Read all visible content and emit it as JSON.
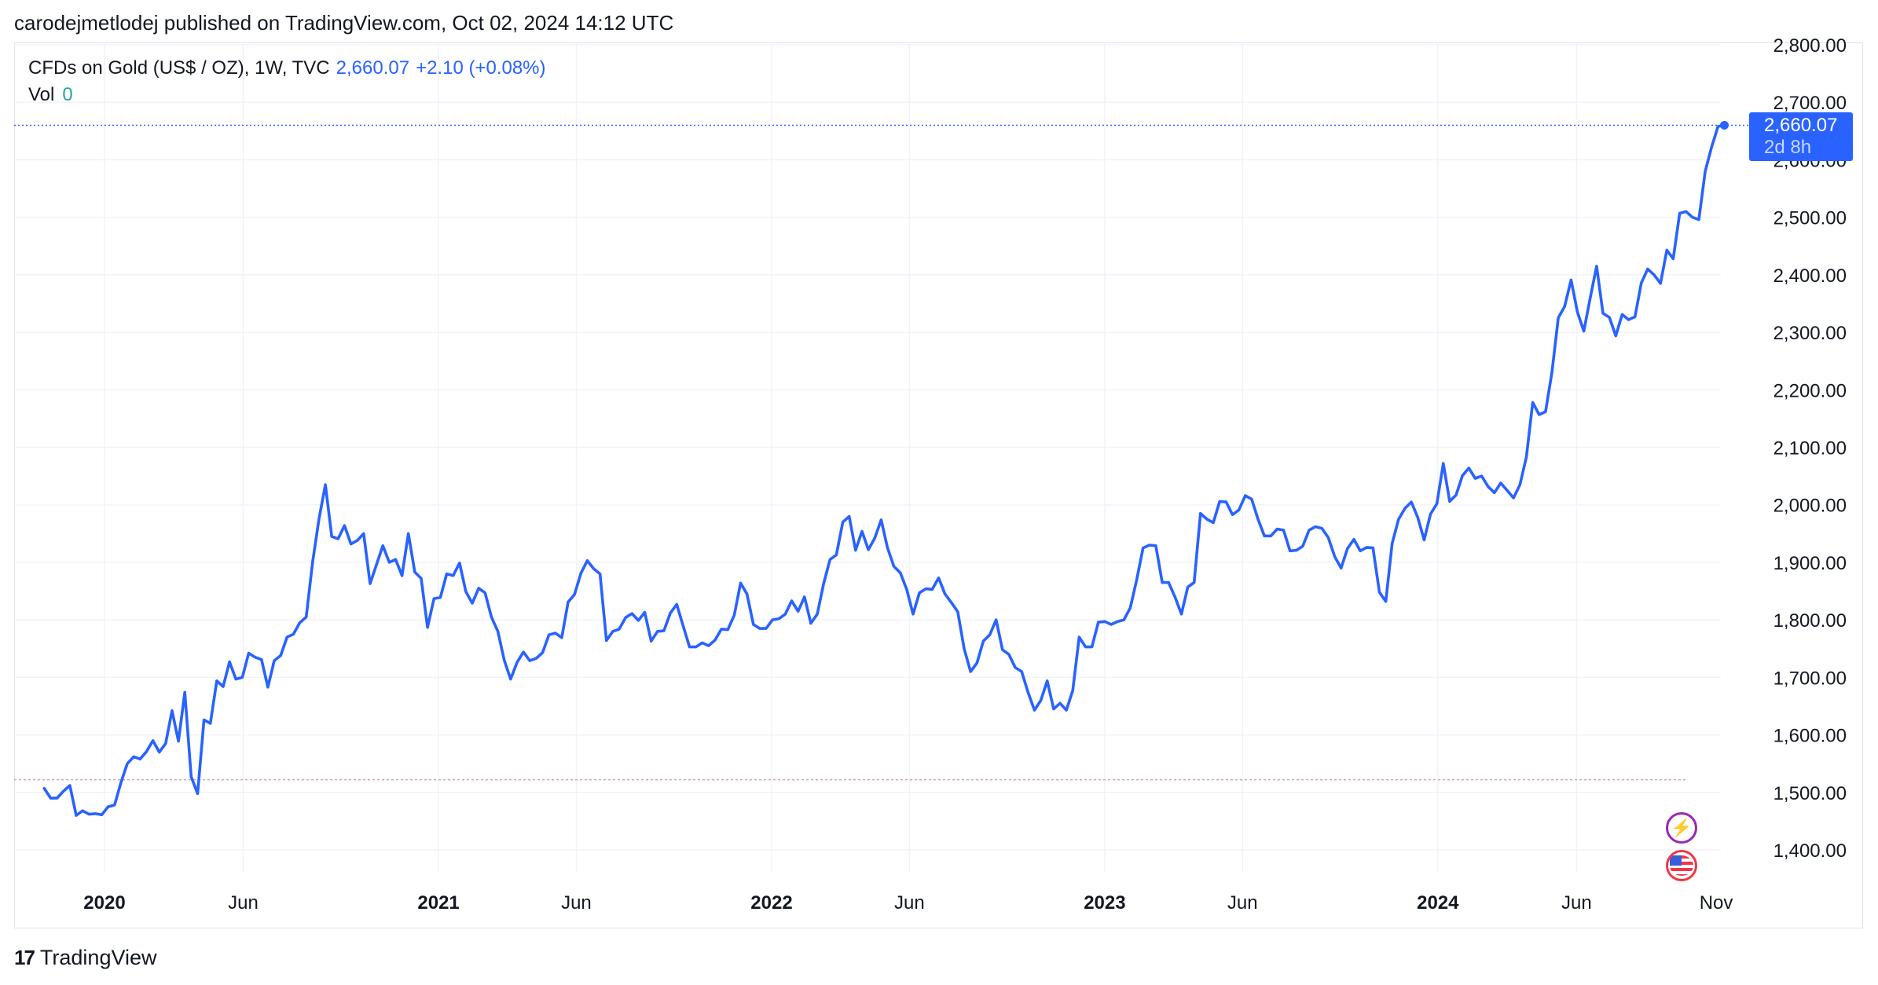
{
  "header": {
    "published_text": "carodejmetlodej published on TradingView.com, Oct 02, 2024 14:12 UTC"
  },
  "legend": {
    "symbol": "CFDs on Gold (US$ / OZ), 1W, TVC",
    "last": "2,660.07",
    "change": "+2.10 (+0.08%)",
    "vol_label": "Vol",
    "vol_value": "0"
  },
  "price_badge": {
    "price": "2,660.07",
    "countdown": "2d 8h"
  },
  "icons": {
    "event": "lightning-icon",
    "country": "us-flag-icon"
  },
  "footer": {
    "brand": "TradingView",
    "logo_glyph": "17"
  },
  "colors": {
    "line": "#2962ff",
    "grid": "#f0f3fa",
    "up": "#26a69a",
    "down": "#f23645"
  },
  "chart_data": {
    "type": "line",
    "title": "CFDs on Gold (US$ / OZ), 1W, TVC",
    "xlabel": "",
    "ylabel": "",
    "grid": true,
    "x_start": "2019-10-27",
    "x_step_days": 7,
    "ylim": [
      1350,
      2800
    ],
    "y_ticks": [
      "1,400.00",
      "1,500.00",
      "1,600.00",
      "1,700.00",
      "1,800.00",
      "1,900.00",
      "2,000.00",
      "2,100.00",
      "2,200.00",
      "2,300.00",
      "2,400.00",
      "2,500.00",
      "2,600.00",
      "2,700.00",
      "2,800.00"
    ],
    "y_tick_values": [
      1400,
      1500,
      1600,
      1700,
      1800,
      1900,
      2000,
      2100,
      2200,
      2300,
      2400,
      2500,
      2600,
      2700,
      2800
    ],
    "x_ticks": [
      {
        "label": "2020",
        "date": "2020-01-01",
        "bold": true
      },
      {
        "label": "Jun",
        "date": "2020-06-01",
        "bold": false
      },
      {
        "label": "2021",
        "date": "2021-01-01",
        "bold": true
      },
      {
        "label": "Jun",
        "date": "2021-06-01",
        "bold": false
      },
      {
        "label": "2022",
        "date": "2022-01-01",
        "bold": true
      },
      {
        "label": "Jun",
        "date": "2022-06-01",
        "bold": false
      },
      {
        "label": "2023",
        "date": "2023-01-01",
        "bold": true
      },
      {
        "label": "Jun",
        "date": "2023-06-01",
        "bold": false
      },
      {
        "label": "2024",
        "date": "2024-01-01",
        "bold": true
      },
      {
        "label": "Jun",
        "date": "2024-06-01",
        "bold": false
      },
      {
        "label": "Nov",
        "date": "2024-11-01",
        "bold": false
      }
    ],
    "last_price": 2660.07,
    "baseline": 1522,
    "series": [
      {
        "values": [
          1507,
          1490,
          1490,
          1502,
          1512,
          1460,
          1468,
          1462,
          1463,
          1461,
          1475,
          1478,
          1517,
          1550,
          1562,
          1558,
          1571,
          1590,
          1570,
          1585,
          1642,
          1589,
          1674,
          1527,
          1498,
          1626,
          1620,
          1694,
          1684,
          1727,
          1697,
          1700,
          1742,
          1735,
          1731,
          1683,
          1729,
          1738,
          1770,
          1775,
          1795,
          1805,
          1900,
          1975,
          2035,
          1945,
          1941,
          1964,
          1932,
          1938,
          1950,
          1863,
          1896,
          1929,
          1900,
          1905,
          1877,
          1950,
          1883,
          1872,
          1787,
          1837,
          1839,
          1880,
          1877,
          1899,
          1849,
          1829,
          1855,
          1847,
          1805,
          1780,
          1730,
          1697,
          1726,
          1744,
          1729,
          1733,
          1743,
          1774,
          1777,
          1769,
          1831,
          1844,
          1881,
          1903,
          1889,
          1880,
          1764,
          1780,
          1784,
          1804,
          1811,
          1799,
          1813,
          1763,
          1780,
          1781,
          1812,
          1827,
          1790,
          1753,
          1753,
          1760,
          1755,
          1765,
          1784,
          1783,
          1808,
          1864,
          1845,
          1792,
          1785,
          1785,
          1800,
          1802,
          1810,
          1833,
          1815,
          1840,
          1794,
          1810,
          1863,
          1905,
          1913,
          1970,
          1980,
          1921,
          1954,
          1922,
          1942,
          1974,
          1925,
          1893,
          1882,
          1853,
          1810,
          1847,
          1854,
          1853,
          1873,
          1845,
          1830,
          1814,
          1750,
          1710,
          1725,
          1763,
          1774,
          1800,
          1748,
          1740,
          1717,
          1710,
          1674,
          1643,
          1660,
          1694,
          1645,
          1655,
          1643,
          1677,
          1770,
          1753,
          1753,
          1796,
          1797,
          1792,
          1797,
          1800,
          1821,
          1869,
          1925,
          1930,
          1929,
          1865,
          1865,
          1840,
          1810,
          1857,
          1865,
          1985,
          1975,
          1969,
          2006,
          2005,
          1983,
          1991,
          2016,
          2010,
          1975,
          1946,
          1946,
          1958,
          1956,
          1920,
          1921,
          1928,
          1956,
          1962,
          1959,
          1943,
          1910,
          1890,
          1924,
          1940,
          1920,
          1926,
          1925,
          1848,
          1832,
          1933,
          1975,
          1994,
          2005,
          1978,
          1939,
          1984,
          2002,
          2072,
          2006,
          2017,
          2051,
          2064,
          2046,
          2050,
          2032,
          2021,
          2038,
          2025,
          2012,
          2035,
          2083,
          2178,
          2157,
          2162,
          2230,
          2325,
          2345,
          2391,
          2335,
          2302,
          2360,
          2415,
          2333,
          2326,
          2294,
          2331,
          2322,
          2327,
          2386,
          2410,
          2400,
          2385,
          2443,
          2428,
          2507,
          2510,
          2500,
          2496,
          2580,
          2622,
          2658,
          2660.07
        ]
      }
    ]
  }
}
